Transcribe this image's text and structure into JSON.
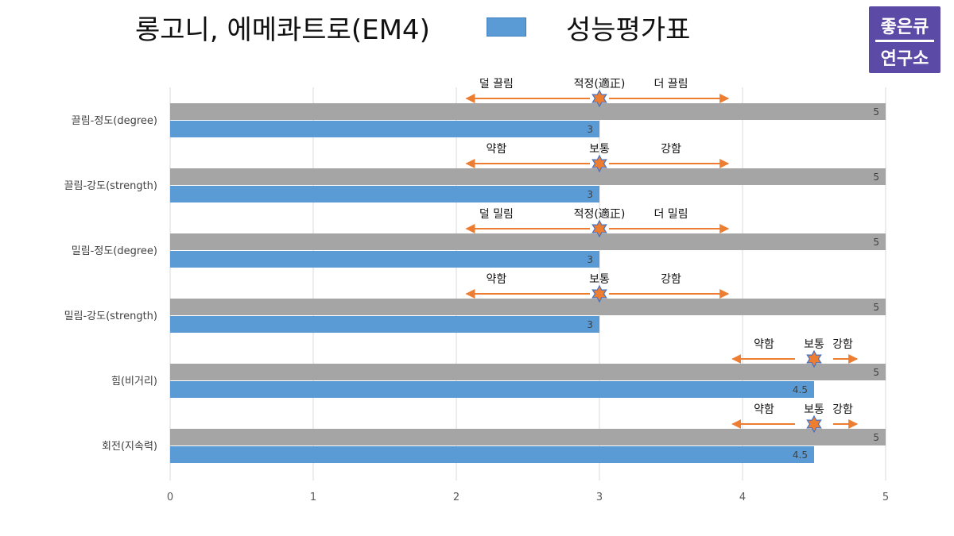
{
  "title": "롱고니, 에메콰트로(EM4)",
  "badge": {
    "line1": "좋은큐",
    "line2": "연구소"
  },
  "colors": {
    "gray_bar": "#a5a5a5",
    "blue_bar": "#5b9bd5",
    "arrow": "#ed7d31",
    "star": "#ed7d31",
    "star_outline": "#4472c4",
    "grid": "#d9d9d9"
  },
  "chart_data": {
    "type": "bar",
    "orientation": "horizontal",
    "categories": [
      "끌림-정도(degree)",
      "끌림-강도(strength)",
      "밀림-정도(degree)",
      "밀림-강도(strength)",
      "힘(비거리)",
      "회전(지속력)"
    ],
    "series": [
      {
        "values": [
          5,
          5,
          5,
          5,
          5,
          5
        ]
      },
      {
        "name": "성능평가표",
        "values": [
          3,
          3,
          3,
          3,
          4.5,
          4.5
        ]
      }
    ],
    "xlim": [
      0,
      5
    ],
    "xticks": [
      "0",
      "1",
      "2",
      "3",
      "4",
      "5"
    ],
    "grid": true,
    "legend": "top",
    "annotations": [
      {
        "left": "덜 끌림",
        "mid": "적정(適正)",
        "right": "더 끌림",
        "marker": 3
      },
      {
        "left": "약함",
        "mid": "보통",
        "right": "강함",
        "marker": 3
      },
      {
        "left": "덜 밀림",
        "mid": "적정(適正)",
        "right": "더 밀림",
        "marker": 3
      },
      {
        "left": "약함",
        "mid": "보통",
        "right": "강함",
        "marker": 3
      },
      {
        "left": "약함",
        "mid": "보통",
        "right": "강함",
        "marker": 4.5
      },
      {
        "left": "약함",
        "mid": "보통",
        "right": "강함",
        "marker": 4.5
      }
    ]
  }
}
